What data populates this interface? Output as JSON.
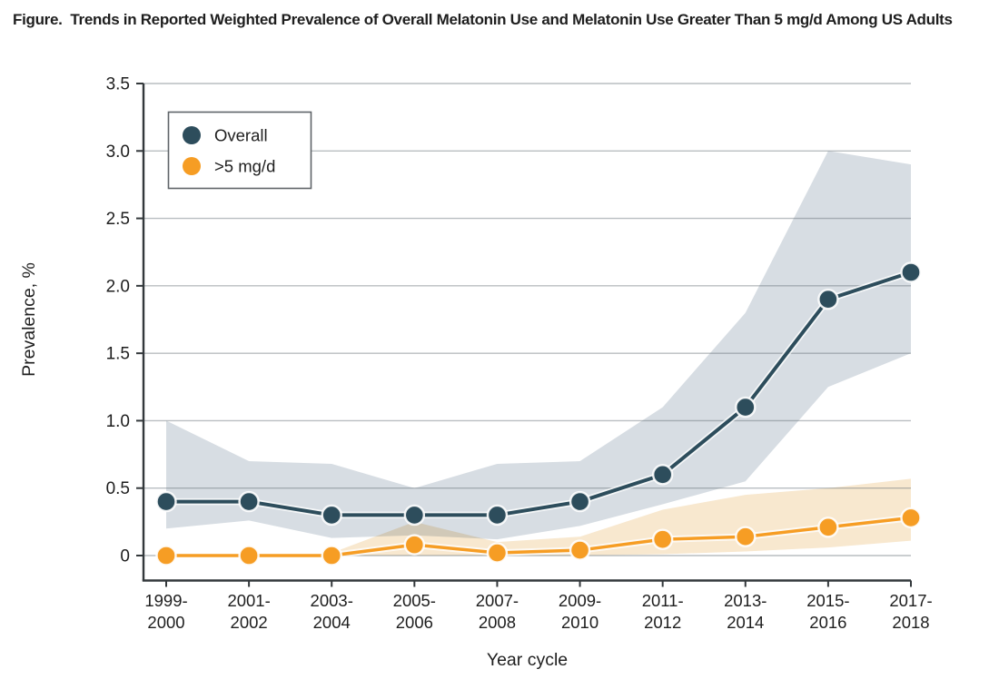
{
  "figure": {
    "title": "Figure.  Trends in Reported Weighted Prevalence of Overall Melatonin Use and Melatonin Use Greater Than 5 mg/d Among US Adults"
  },
  "chart_data": {
    "type": "line",
    "title": "Trends in Reported Weighted Prevalence of Overall Melatonin Use and Melatonin Use Greater Than 5 mg/d Among US Adults",
    "categories": [
      "1999-2000",
      "2001-2002",
      "2003-2004",
      "2005-2006",
      "2007-2008",
      "2009-2010",
      "2011-2012",
      "2013-2014",
      "2015-2016",
      "2017-2018"
    ],
    "series": [
      {
        "name": "Overall",
        "color": "#2d4d5c",
        "band_color": "#d7dde3",
        "values": [
          0.4,
          0.4,
          0.3,
          0.3,
          0.3,
          0.4,
          0.6,
          1.1,
          1.9,
          2.1
        ],
        "ci_lower": [
          0.2,
          0.26,
          0.13,
          0.15,
          0.12,
          0.22,
          0.38,
          0.55,
          1.25,
          1.5
        ],
        "ci_upper": [
          1.0,
          0.7,
          0.68,
          0.5,
          0.68,
          0.7,
          1.1,
          1.8,
          3.0,
          2.9
        ],
        "band_start_index": 0
      },
      {
        "name": ">5 mg/d",
        "color": "#f69d24",
        "band_color": "#f8e8cf",
        "values": [
          0.0,
          0.0,
          0.0,
          0.08,
          0.02,
          0.04,
          0.12,
          0.14,
          0.21,
          0.28
        ],
        "ci_lower": [
          0.0,
          0.0,
          0.0,
          0.0,
          0.0,
          0.0,
          0.01,
          0.03,
          0.06,
          0.11
        ],
        "ci_upper": [
          0.0,
          0.0,
          0.02,
          0.25,
          0.1,
          0.14,
          0.34,
          0.45,
          0.5,
          0.57
        ],
        "band_start_index": 2
      }
    ],
    "xlabel": "Year cycle",
    "ylabel": "Prevalence, %",
    "ylim": [
      0,
      3.5
    ],
    "yticks": [
      {
        "value": 0,
        "label": "0"
      },
      {
        "value": 0.5,
        "label": "0.5"
      },
      {
        "value": 1.0,
        "label": "1.0"
      },
      {
        "value": 1.5,
        "label": "1.5"
      },
      {
        "value": 2.0,
        "label": "2.0"
      },
      {
        "value": 2.5,
        "label": "2.5"
      },
      {
        "value": 3.0,
        "label": "3.0"
      },
      {
        "value": 3.5,
        "label": "3.5"
      }
    ],
    "grid": "horizontal",
    "legend_position": "top-left",
    "colors": {
      "grid": "#c7cdd2",
      "axis": "#33383b",
      "text": "#1e1e1e",
      "legend_border": "#5f6468",
      "background": "#ffffff"
    }
  }
}
